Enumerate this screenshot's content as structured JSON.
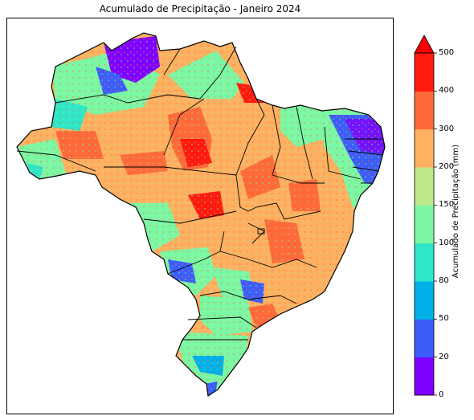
{
  "title": "Acumulado de Precipitação - Janeiro 2024",
  "colorbar": {
    "label": "Acumulado de Precipitação (mm)",
    "ticks": [
      "0",
      "20",
      "50",
      "80",
      "100",
      "150",
      "200",
      "300",
      "400",
      "500"
    ],
    "colors": [
      "#7f00ff",
      "#3c5dfa",
      "#00b0e8",
      "#2ee6c8",
      "#7cf7a4",
      "#bde88a",
      "#ffb060",
      "#ff6a3a",
      "#ff1a10",
      "#ff0000"
    ],
    "extend": "max"
  },
  "map": {
    "region": "Brasil",
    "states_visible": true
  }
}
